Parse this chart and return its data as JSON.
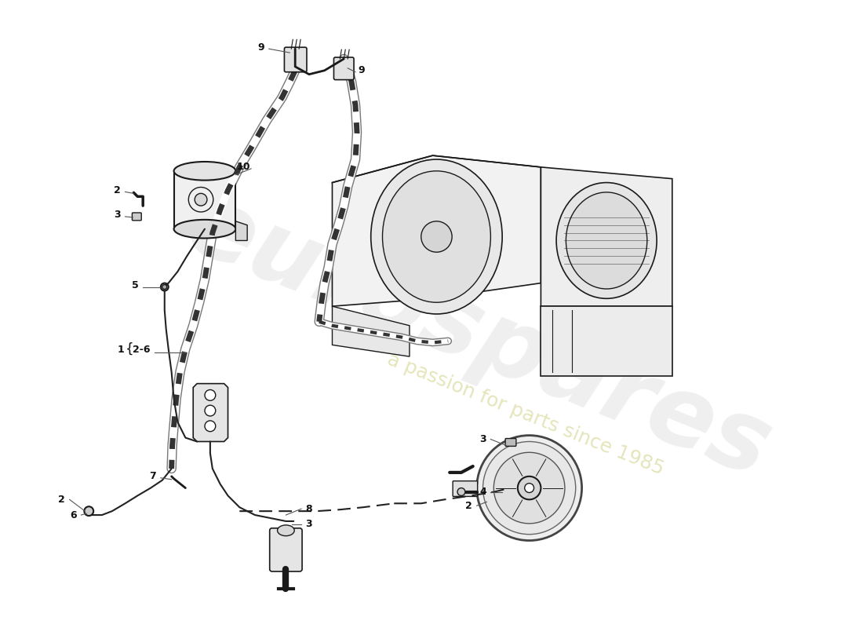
{
  "bg_color": "#ffffff",
  "line_color": "#1a1a1a",
  "hose_outer_color": "#888888",
  "hose_inner_color": "#444444",
  "label_color": "#111111",
  "watermark1_color": "#cccccc",
  "watermark2_color": "#d4d490",
  "label_fontsize": 9,
  "watermark1_fontsize": 90,
  "watermark2_fontsize": 18,
  "watermark1_text": "eurospares",
  "watermark2_text": "a passion for parts since 1985"
}
